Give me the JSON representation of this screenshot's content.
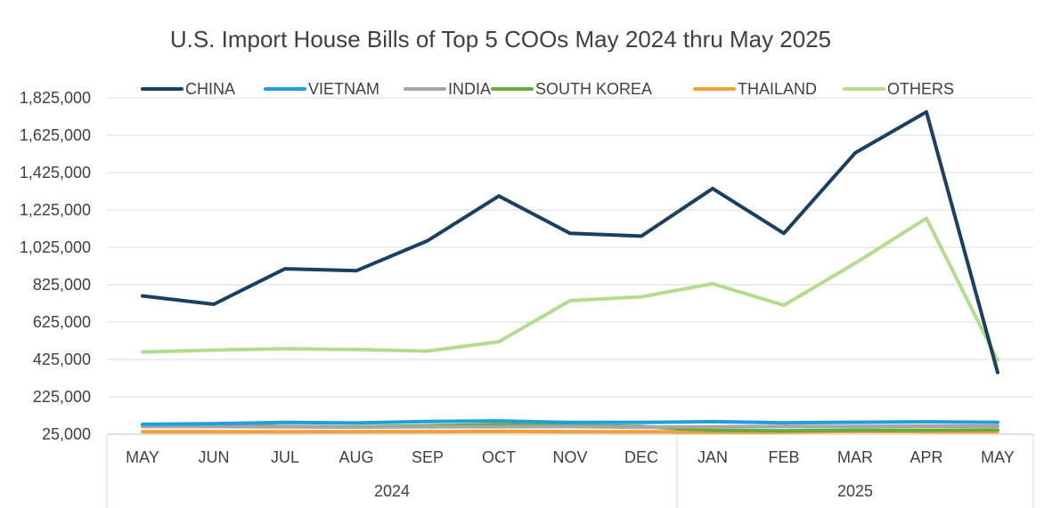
{
  "chart_data": {
    "type": "line",
    "title": "U.S. Import House Bills of Top 5 COOs May 2024 thru May 2025",
    "xlabel": "",
    "ylabel": "",
    "categories": [
      "MAY",
      "JUN",
      "JUL",
      "AUG",
      "SEP",
      "OCT",
      "NOV",
      "DEC",
      "JAN",
      "FEB",
      "MAR",
      "APR",
      "MAY"
    ],
    "year_groups": [
      {
        "label": "2024",
        "start": 0,
        "end": 7
      },
      {
        "label": "2025",
        "start": 8,
        "end": 12
      }
    ],
    "ylim": [
      25000,
      1825000
    ],
    "yticks": [
      25000,
      225000,
      425000,
      625000,
      825000,
      1025000,
      1225000,
      1425000,
      1625000,
      1825000
    ],
    "ytick_labels": [
      "25,000",
      "225,000",
      "425,000",
      "625,000",
      "825,000",
      "1,025,000",
      "1,225,000",
      "1,425,000",
      "1,625,000",
      "1,825,000"
    ],
    "grid": true,
    "legend_position": "top",
    "series": [
      {
        "name": "CHINA",
        "color": "#1b3f61",
        "values": [
          765000,
          720000,
          910000,
          900000,
          1060000,
          1300000,
          1100000,
          1085000,
          1340000,
          1100000,
          1530000,
          1750000,
          355000
        ]
      },
      {
        "name": "VIETNAM",
        "color": "#1fa0db",
        "values": [
          78000,
          81000,
          88000,
          85000,
          93000,
          96000,
          88000,
          88000,
          92000,
          86000,
          89000,
          91000,
          88000
        ]
      },
      {
        "name": "INDIA",
        "color": "#a6a6a6",
        "values": [
          66000,
          66000,
          64000,
          63000,
          64000,
          65000,
          66000,
          62000,
          64000,
          66000,
          66000,
          68000,
          68000
        ]
      },
      {
        "name": "SOUTH KOREA",
        "color": "#6aab38",
        "values": [
          73000,
          72000,
          66000,
          64000,
          70000,
          76000,
          71000,
          66000,
          45000,
          43000,
          46000,
          46000,
          48000
        ]
      },
      {
        "name": "THAILAND",
        "color": "#f5a033",
        "values": [
          38000,
          38000,
          38000,
          39000,
          39000,
          40000,
          39000,
          38000,
          37000,
          37000,
          40000,
          39000,
          38000
        ]
      },
      {
        "name": "OTHERS",
        "color": "#b3dc8f",
        "values": [
          465000,
          475000,
          482000,
          478000,
          470000,
          520000,
          740000,
          760000,
          830000,
          715000,
          940000,
          1180000,
          420000
        ]
      }
    ]
  }
}
